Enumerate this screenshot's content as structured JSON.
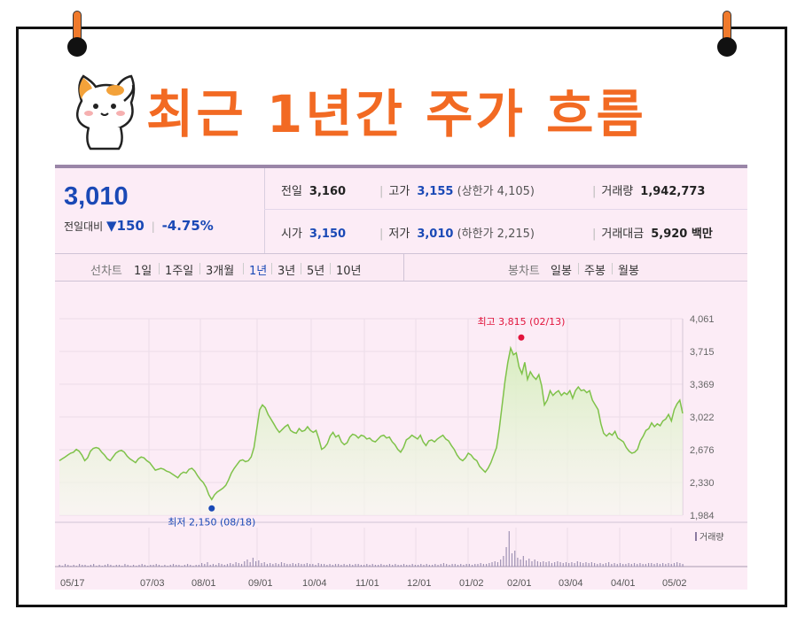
{
  "title": "최근 1년간 주가 흐름",
  "quote": {
    "price": "3,010",
    "change_label": "전일대비",
    "change_arrow": "▼",
    "change_value": "150",
    "change_pct": "-4.75%",
    "prev_close_label": "전일",
    "prev_close": "3,160",
    "high_label": "고가",
    "high": "3,155",
    "upper_limit": "(상한가 4,105)",
    "volume_label": "거래량",
    "volume": "1,942,773",
    "open_label": "시가",
    "open": "3,150",
    "low_label": "저가",
    "low": "3,010",
    "lower_limit": "(하한가 2,215)",
    "amount_label": "거래대금",
    "amount": "5,920 백만"
  },
  "period_bar": {
    "line_label": "선차트",
    "line_periods": [
      "1일",
      "1주일",
      "3개월",
      "1년",
      "3년",
      "5년",
      "10년"
    ],
    "active_period": "1년",
    "candle_label": "봉차트",
    "candle_periods": [
      "일봉",
      "주봉",
      "월봉"
    ]
  },
  "colors": {
    "accent": "#f26a23",
    "blue": "#1a49b6",
    "line": "#7fc24a",
    "fill": "#d8edc0",
    "max_marker": "#e2143c",
    "min_marker": "#1a49b6"
  },
  "chart_data": {
    "type": "area",
    "x_ticks": [
      "05/17",
      "07/03",
      "08/01",
      "09/01",
      "10/04",
      "11/01",
      "12/01",
      "01/02",
      "02/01",
      "03/04",
      "04/01",
      "05/02"
    ],
    "y_ticks": [
      "4,061",
      "3,715",
      "3,369",
      "3,022",
      "2,676",
      "2,330",
      "1,984"
    ],
    "ylim": [
      1984,
      4061
    ],
    "max_annotation": "최고 3,815 (02/13)",
    "min_annotation": "최저 2,150 (08/18)",
    "volume_label": "거래량",
    "values": [
      2560,
      2580,
      2600,
      2620,
      2640,
      2650,
      2680,
      2660,
      2620,
      2560,
      2590,
      2660,
      2690,
      2700,
      2690,
      2650,
      2620,
      2580,
      2560,
      2600,
      2640,
      2660,
      2670,
      2650,
      2610,
      2580,
      2560,
      2540,
      2580,
      2600,
      2590,
      2560,
      2540,
      2500,
      2460,
      2470,
      2480,
      2470,
      2450,
      2440,
      2420,
      2400,
      2380,
      2420,
      2440,
      2430,
      2470,
      2480,
      2450,
      2400,
      2360,
      2330,
      2280,
      2200,
      2150,
      2200,
      2230,
      2250,
      2270,
      2300,
      2360,
      2430,
      2480,
      2520,
      2560,
      2570,
      2550,
      2560,
      2600,
      2700,
      2900,
      3100,
      3150,
      3120,
      3050,
      3000,
      2950,
      2900,
      2860,
      2890,
      2920,
      2940,
      2880,
      2860,
      2850,
      2900,
      2870,
      2880,
      2920,
      2880,
      2860,
      2880,
      2790,
      2680,
      2700,
      2740,
      2820,
      2860,
      2810,
      2830,
      2760,
      2730,
      2750,
      2810,
      2840,
      2830,
      2800,
      2830,
      2820,
      2790,
      2800,
      2770,
      2760,
      2790,
      2820,
      2830,
      2800,
      2810,
      2760,
      2730,
      2680,
      2650,
      2700,
      2780,
      2800,
      2830,
      2810,
      2790,
      2830,
      2760,
      2720,
      2770,
      2780,
      2760,
      2790,
      2810,
      2830,
      2790,
      2770,
      2720,
      2680,
      2620,
      2580,
      2560,
      2590,
      2640,
      2620,
      2580,
      2560,
      2500,
      2470,
      2440,
      2480,
      2540,
      2620,
      2700,
      2900,
      3150,
      3400,
      3600,
      3750,
      3680,
      3700,
      3550,
      3480,
      3600,
      3420,
      3500,
      3450,
      3420,
      3470,
      3350,
      3150,
      3200,
      3300,
      3250,
      3280,
      3300,
      3250,
      3280,
      3260,
      3300,
      3220,
      3300,
      3340,
      3300,
      3310,
      3280,
      3300,
      3200,
      3150,
      3100,
      2950,
      2850,
      2820,
      2850,
      2830,
      2870,
      2800,
      2780,
      2760,
      2700,
      2660,
      2640,
      2650,
      2680,
      2770,
      2820,
      2880,
      2900,
      2960,
      2920,
      2950,
      2930,
      2980,
      3000,
      3050,
      2980,
      3100,
      3160,
      3200,
      3060
    ]
  },
  "volume_bars": [
    2,
    1,
    3,
    2,
    1,
    2,
    1,
    3,
    2,
    2,
    1,
    2,
    3,
    1,
    2,
    1,
    2,
    3,
    2,
    1,
    2,
    2,
    1,
    3,
    2,
    1,
    2,
    1,
    2,
    3,
    2,
    1,
    2,
    2,
    3,
    2,
    1,
    2,
    1,
    2,
    3,
    2,
    2,
    1,
    2,
    3,
    2,
    1,
    2,
    2,
    4,
    3,
    5,
    2,
    3,
    2,
    4,
    3,
    2,
    3,
    4,
    3,
    5,
    4,
    3,
    6,
    8,
    5,
    10,
    6,
    7,
    4,
    5,
    3,
    4,
    3,
    4,
    3,
    5,
    4,
    3,
    3,
    4,
    3,
    4,
    3,
    3,
    4,
    3,
    3,
    2,
    4,
    3,
    3,
    2,
    3,
    2,
    3,
    3,
    2,
    3,
    2,
    3,
    2,
    3,
    3,
    2,
    2,
    3,
    2,
    3,
    2,
    2,
    3,
    2,
    2,
    3,
    2,
    3,
    2,
    2,
    3,
    2,
    2,
    3,
    2,
    2,
    3,
    2,
    3,
    2,
    2,
    3,
    2,
    3,
    4,
    3,
    2,
    3,
    3,
    2,
    3,
    2,
    3,
    3,
    2,
    3,
    3,
    4,
    3,
    3,
    4,
    5,
    6,
    5,
    8,
    12,
    22,
    40,
    15,
    18,
    10,
    8,
    12,
    7,
    9,
    6,
    8,
    6,
    5,
    6,
    5,
    6,
    4,
    5,
    6,
    5,
    4,
    5,
    4,
    5,
    4,
    6,
    5,
    4,
    5,
    4,
    5,
    4,
    3,
    4,
    3,
    4,
    5,
    3,
    4,
    3,
    4,
    3,
    3,
    4,
    3,
    4,
    3,
    4,
    3,
    3,
    4,
    4,
    3,
    4,
    3,
    4,
    3,
    4,
    3,
    4,
    5,
    4,
    3
  ]
}
